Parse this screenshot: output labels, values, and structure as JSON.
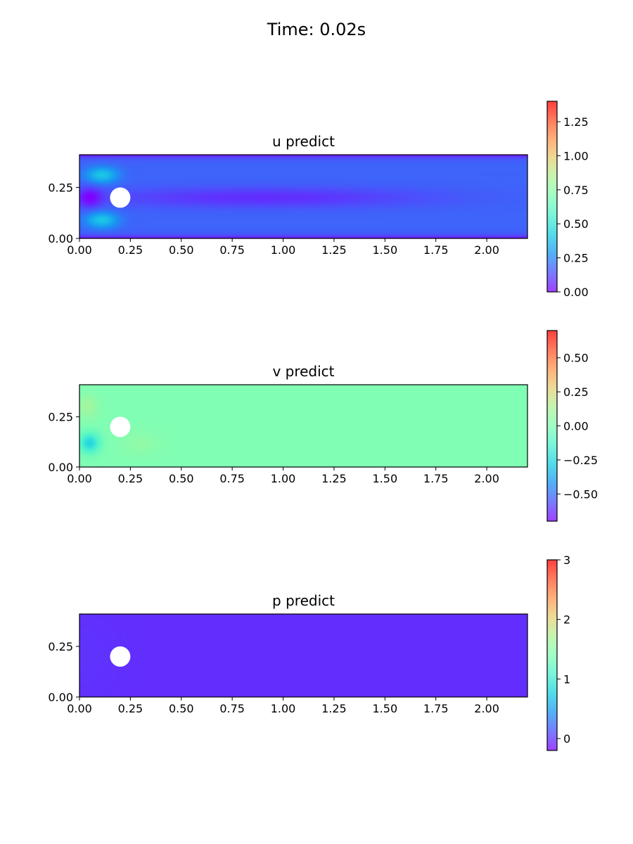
{
  "figure": {
    "title": "Time: 0.02s"
  },
  "colormap": [
    "#8000ff",
    "#4c50fc",
    "#1996f3",
    "#1acfe3",
    "#4cf2cd",
    "#80feb3",
    "#b2f296",
    "#e6cf74",
    "#ff964f",
    "#ff5028",
    "#ff0000"
  ],
  "chart_data": [
    {
      "type": "heatmap",
      "title": "u predict",
      "xlim": [
        0,
        2.2
      ],
      "ylim": [
        0,
        0.41
      ],
      "xticks": [
        "0.00",
        "0.25",
        "0.50",
        "0.75",
        "1.00",
        "1.25",
        "1.50",
        "1.75",
        "2.00"
      ],
      "yticks": [
        "0.00",
        "0.25"
      ],
      "obstacle": {
        "x": 0.2,
        "y": 0.2,
        "r": 0.05
      },
      "colorbar": {
        "min": 0.0,
        "max": 1.4,
        "ticks": [
          "0.00",
          "0.25",
          "0.50",
          "0.75",
          "1.00",
          "1.25"
        ]
      },
      "field": {
        "base": 0.18,
        "features": [
          {
            "x": 0.11,
            "y": 0.31,
            "sx": 0.08,
            "sy": 0.04,
            "v": 0.22
          },
          {
            "x": 0.11,
            "y": 0.09,
            "sx": 0.08,
            "sy": 0.04,
            "v": 0.22
          },
          {
            "x": 0.9,
            "y": 0.2,
            "sx": 0.8,
            "sy": 0.05,
            "v": -0.1
          },
          {
            "x": 0.05,
            "y": 0.2,
            "sx": 0.06,
            "sy": 0.05,
            "v": -0.15
          }
        ],
        "wall": -0.18
      }
    },
    {
      "type": "heatmap",
      "title": "v predict",
      "xlim": [
        0,
        2.2
      ],
      "ylim": [
        0,
        0.41
      ],
      "xticks": [
        "0.00",
        "0.25",
        "0.50",
        "0.75",
        "1.00",
        "1.25",
        "1.50",
        "1.75",
        "2.00"
      ],
      "yticks": [
        "0.00",
        "0.25"
      ],
      "obstacle": {
        "x": 0.2,
        "y": 0.2,
        "r": 0.05
      },
      "colorbar": {
        "min": -0.7,
        "max": 0.7,
        "ticks": [
          "0.50",
          "0.25",
          "0.00",
          "−0.25",
          "−0.50"
        ]
      },
      "field": {
        "base": 0.0,
        "features": [
          {
            "x": 0.04,
            "y": 0.3,
            "sx": 0.05,
            "sy": 0.06,
            "v": 0.1
          },
          {
            "x": 0.05,
            "y": 0.12,
            "sx": 0.05,
            "sy": 0.05,
            "v": -0.25
          },
          {
            "x": 0.3,
            "y": 0.12,
            "sx": 0.1,
            "sy": 0.06,
            "v": 0.05
          }
        ],
        "wall": 0
      }
    },
    {
      "type": "heatmap",
      "title": "p predict",
      "xlim": [
        0,
        2.2
      ],
      "ylim": [
        0,
        0.41
      ],
      "xticks": [
        "0.00",
        "0.25",
        "0.50",
        "0.75",
        "1.00",
        "1.25",
        "1.50",
        "1.75",
        "2.00"
      ],
      "yticks": [
        "0.00",
        "0.25"
      ],
      "obstacle": {
        "x": 0.2,
        "y": 0.2,
        "r": 0.05
      },
      "colorbar": {
        "min": -0.2,
        "max": 3.0,
        "ticks": [
          "0",
          "1",
          "2",
          "3"
        ]
      },
      "field": {
        "base": -0.02,
        "features": [
          {
            "x": 0.0,
            "y": 0.2,
            "sx": 0.2,
            "sy": 0.2,
            "v": 0.03
          }
        ],
        "wall": 0
      }
    }
  ]
}
